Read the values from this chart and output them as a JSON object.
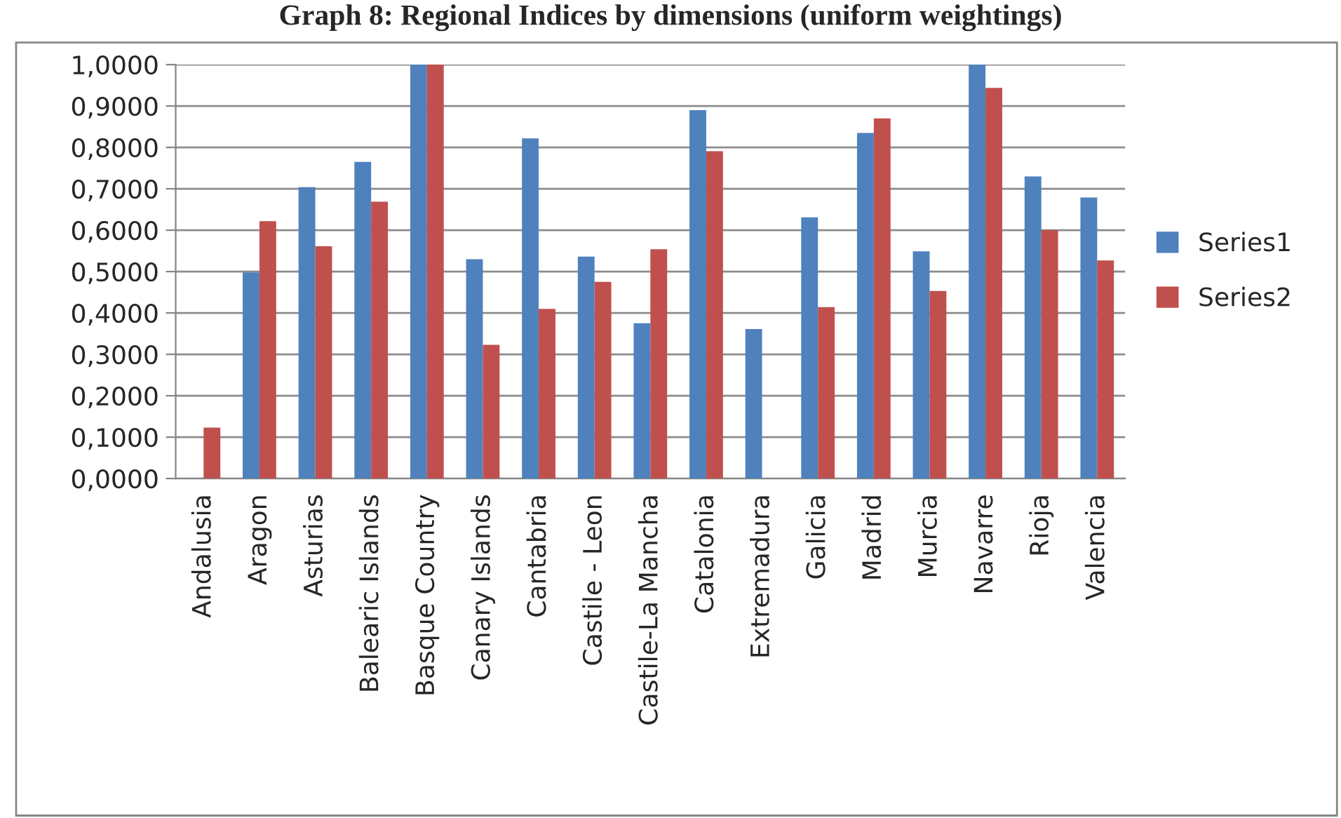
{
  "chart_data": {
    "type": "bar",
    "title": "Graph 8: Regional Indices by dimensions (uniform weightings)",
    "categories": [
      "Andalusia",
      "Aragon",
      "Asturias",
      "Balearic Islands",
      "Basque Country",
      "Canary Islands",
      "Cantabria",
      "Castile - Leon",
      "Castile-La Mancha",
      "Catalonia",
      "Extremadura",
      "Galicia",
      "Madrid",
      "Murcia",
      "Navarre",
      "Rioja",
      "Valencia"
    ],
    "series": [
      {
        "name": "Series1",
        "color": "#4f81bd",
        "values": [
          0,
          0.498,
          0.704,
          0.765,
          1.0,
          0.53,
          0.822,
          0.536,
          0.375,
          0.89,
          0.361,
          0.631,
          0.835,
          0.549,
          1.0,
          0.73,
          0.679
        ]
      },
      {
        "name": "Series2",
        "color": "#c0504d",
        "values": [
          0.123,
          0.622,
          0.561,
          0.669,
          1.0,
          0.323,
          0.41,
          0.475,
          0.554,
          0.791,
          0,
          0.414,
          0.87,
          0.453,
          0.944,
          0.6,
          0.527
        ]
      }
    ],
    "ylim": [
      0,
      1.0
    ],
    "yticks": [
      {
        "value": 0,
        "label": "0,0000"
      },
      {
        "value": 0.1,
        "label": "0,1000"
      },
      {
        "value": 0.2,
        "label": "0,2000"
      },
      {
        "value": 0.3,
        "label": "0,3000"
      },
      {
        "value": 0.4,
        "label": "0,4000"
      },
      {
        "value": 0.5,
        "label": "0,5000"
      },
      {
        "value": 0.6,
        "label": "0,6000"
      },
      {
        "value": 0.7,
        "label": "0,7000"
      },
      {
        "value": 0.8,
        "label": "0,8000"
      },
      {
        "value": 0.9,
        "label": "0,9000"
      },
      {
        "value": 1.0,
        "label": "1,0000"
      }
    ],
    "grid": "y",
    "legend": "right"
  }
}
